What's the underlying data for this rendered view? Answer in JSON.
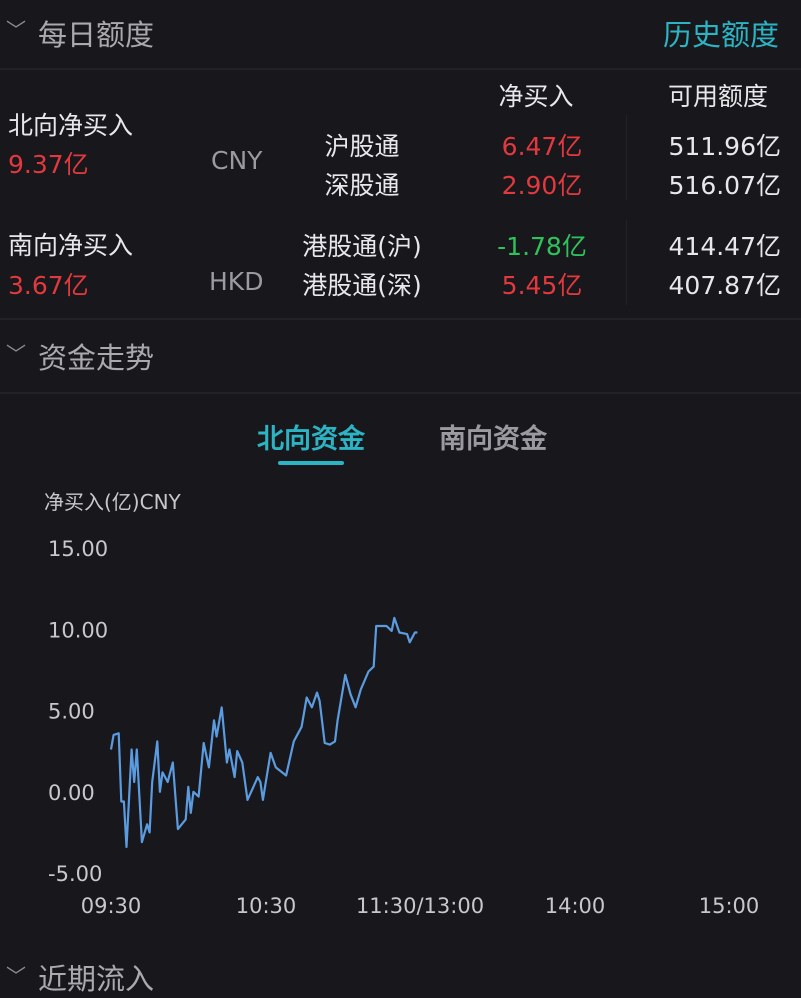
{
  "daily_quota": {
    "title": "每日额度",
    "history_link": "历史额度",
    "col_net_buy": "净买入",
    "col_available": "可用额度",
    "north": {
      "label": "北向净买入",
      "value": "9.37亿",
      "currency": "CNY",
      "rows": [
        {
          "name": "沪股通",
          "net": "6.47亿",
          "available": "511.96亿"
        },
        {
          "name": "深股通",
          "net": "2.90亿",
          "available": "516.07亿"
        }
      ]
    },
    "south": {
      "label": "南向净买入",
      "value": "3.67亿",
      "currency": "HKD",
      "rows": [
        {
          "name": "港股通(沪)",
          "net": "-1.78亿",
          "available": "414.47亿"
        },
        {
          "name": "港股通(深)",
          "net": "5.45亿",
          "available": "407.87亿"
        }
      ]
    }
  },
  "fund_trend": {
    "title": "资金走势",
    "tabs": [
      {
        "label": "北向资金",
        "active": true
      },
      {
        "label": "南向资金",
        "active": false
      }
    ]
  },
  "next_section": {
    "title": "近期流入"
  },
  "colors": {
    "positive": "#e0393e",
    "negative": "#2fc25b",
    "accent": "#2bb4c3",
    "line": "#5b9bdf"
  },
  "chart_data": {
    "type": "line",
    "ylabel": "净买入(亿)CNY",
    "ylim": [
      -5,
      15
    ],
    "yticks": [
      "15.00",
      "10.00",
      "5.00",
      "0.00",
      "-5.00"
    ],
    "xticks": [
      "09:30",
      "10:30",
      "11:30/13:00",
      "14:00",
      "15:00"
    ],
    "grid": false,
    "series": [
      {
        "points": [
          [
            "09:30",
            2.6
          ],
          [
            "09:31",
            3.5
          ],
          [
            "09:33",
            3.6
          ],
          [
            "09:34",
            -0.6
          ],
          [
            "09:35",
            -0.6
          ],
          [
            "09:36",
            -3.4
          ],
          [
            "09:38",
            2.6
          ],
          [
            "09:39",
            0.6
          ],
          [
            "09:40",
            2.6
          ],
          [
            "09:42",
            -3.1
          ],
          [
            "09:44",
            -2.0
          ],
          [
            "09:45",
            -2.5
          ],
          [
            "09:46",
            0.6
          ],
          [
            "09:48",
            3.1
          ],
          [
            "09:49",
            0.0
          ],
          [
            "09:50",
            1.2
          ],
          [
            "09:52",
            0.6
          ],
          [
            "09:54",
            1.8
          ],
          [
            "09:56",
            -2.3
          ],
          [
            "09:59",
            -1.7
          ],
          [
            "10:00",
            0.3
          ],
          [
            "10:01",
            -1.3
          ],
          [
            "10:02",
            0.0
          ],
          [
            "10:04",
            -0.3
          ],
          [
            "10:06",
            3.0
          ],
          [
            "10:08",
            1.5
          ],
          [
            "10:10",
            4.4
          ],
          [
            "10:11",
            3.4
          ],
          [
            "10:13",
            5.2
          ],
          [
            "10:15",
            1.8
          ],
          [
            "10:16",
            2.6
          ],
          [
            "10:18",
            0.9
          ],
          [
            "10:19",
            2.5
          ],
          [
            "10:21",
            1.8
          ],
          [
            "10:23",
            -0.5
          ],
          [
            "10:27",
            0.9
          ],
          [
            "10:28",
            0.6
          ],
          [
            "10:29",
            -0.5
          ],
          [
            "10:32",
            2.4
          ],
          [
            "10:34",
            1.5
          ],
          [
            "10:38",
            1.0
          ],
          [
            "10:41",
            3.1
          ],
          [
            "10:44",
            4.0
          ],
          [
            "10:46",
            5.8
          ],
          [
            "10:48",
            5.2
          ],
          [
            "10:50",
            6.1
          ],
          [
            "10:51",
            5.6
          ],
          [
            "10:53",
            3.0
          ],
          [
            "10:55",
            2.9
          ],
          [
            "10:57",
            3.1
          ],
          [
            "10:58",
            4.4
          ],
          [
            "11:01",
            7.2
          ],
          [
            "11:03",
            6.0
          ],
          [
            "11:05",
            5.2
          ],
          [
            "11:07",
            6.3
          ],
          [
            "11:10",
            7.4
          ],
          [
            "11:12",
            7.7
          ],
          [
            "11:13",
            10.2
          ],
          [
            "11:17",
            10.2
          ],
          [
            "11:19",
            9.9
          ],
          [
            "11:20",
            10.7
          ],
          [
            "11:22",
            9.8
          ],
          [
            "11:25",
            9.7
          ],
          [
            "11:26",
            9.2
          ],
          [
            "11:28",
            9.8
          ],
          [
            "11:29",
            9.8
          ]
        ]
      }
    ]
  }
}
